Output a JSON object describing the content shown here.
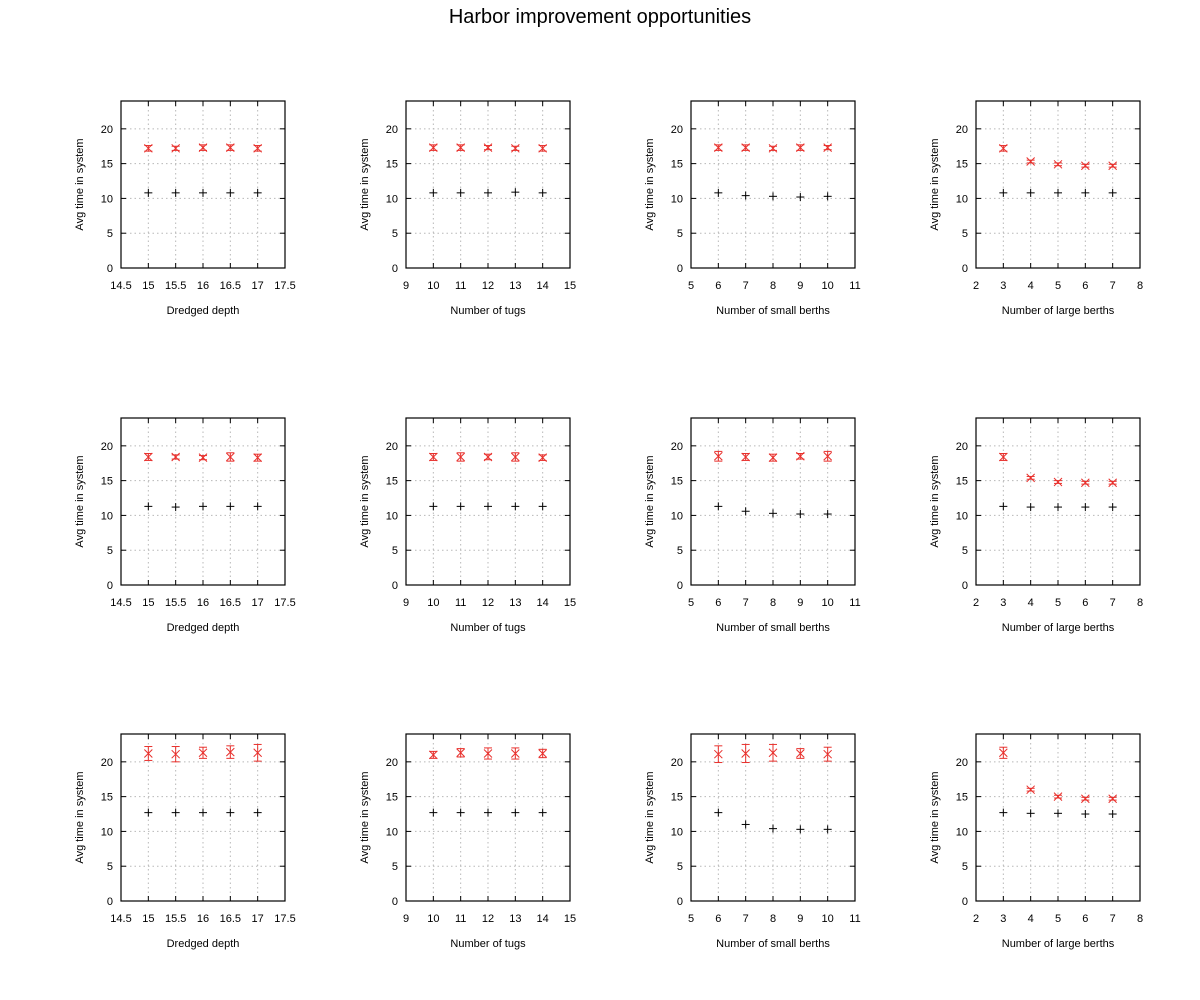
{
  "figure": {
    "title": "Harbor improvement opportunities"
  },
  "colors": {
    "series_plus": "#000000",
    "series_x": "#e8302c",
    "grid": "#b8b8b8"
  },
  "chart_data": [
    {
      "type": "scatter",
      "xlabel": "Dredged depth",
      "ylabel": "Avg time in system",
      "xlim": [
        14.5,
        17.5
      ],
      "xticks": [
        "14.5",
        "15",
        "15.5",
        "16",
        "16.5",
        "17",
        "17.5"
      ],
      "ylim": [
        0,
        24
      ],
      "yticks": [
        "0",
        "5",
        "10",
        "15",
        "20"
      ],
      "grid": true,
      "marker_plus": {
        "x": [
          15,
          15.5,
          16,
          16.5,
          17
        ],
        "y": [
          10.8,
          10.8,
          10.8,
          10.8,
          10.8
        ]
      },
      "marker_x": {
        "x": [
          15,
          15.5,
          16,
          16.5,
          17
        ],
        "y": [
          17.2,
          17.2,
          17.3,
          17.3,
          17.2
        ],
        "err": [
          0.4,
          0.3,
          0.4,
          0.4,
          0.4
        ]
      }
    },
    {
      "type": "scatter",
      "xlabel": "Number of tugs",
      "ylabel": "Avg time in system",
      "xlim": [
        9,
        15
      ],
      "xticks": [
        "9",
        "10",
        "11",
        "12",
        "13",
        "14",
        "15"
      ],
      "ylim": [
        0,
        24
      ],
      "yticks": [
        "0",
        "5",
        "10",
        "15",
        "20"
      ],
      "grid": true,
      "marker_plus": {
        "x": [
          10,
          11,
          12,
          13,
          14
        ],
        "y": [
          10.8,
          10.8,
          10.8,
          10.9,
          10.8
        ]
      },
      "marker_x": {
        "x": [
          10,
          11,
          12,
          13,
          14
        ],
        "y": [
          17.3,
          17.3,
          17.3,
          17.2,
          17.2
        ],
        "err": [
          0.4,
          0.4,
          0.3,
          0.3,
          0.4
        ]
      }
    },
    {
      "type": "scatter",
      "xlabel": "Number of small berths",
      "ylabel": "Avg time in system",
      "xlim": [
        5,
        11
      ],
      "xticks": [
        "5",
        "6",
        "7",
        "8",
        "9",
        "10",
        "11"
      ],
      "ylim": [
        0,
        24
      ],
      "yticks": [
        "0",
        "5",
        "10",
        "15",
        "20"
      ],
      "grid": true,
      "marker_plus": {
        "x": [
          6,
          7,
          8,
          9,
          10
        ],
        "y": [
          10.8,
          10.4,
          10.3,
          10.2,
          10.3
        ]
      },
      "marker_x": {
        "x": [
          6,
          7,
          8,
          9,
          10
        ],
        "y": [
          17.3,
          17.3,
          17.2,
          17.3,
          17.3
        ],
        "err": [
          0.4,
          0.4,
          0.3,
          0.4,
          0.3
        ]
      }
    },
    {
      "type": "scatter",
      "xlabel": "Number of large berths",
      "ylabel": "Avg time in system",
      "xlim": [
        2,
        8
      ],
      "xticks": [
        "2",
        "3",
        "4",
        "5",
        "6",
        "7",
        "8"
      ],
      "ylim": [
        0,
        24
      ],
      "yticks": [
        "0",
        "5",
        "10",
        "15",
        "20"
      ],
      "grid": true,
      "marker_plus": {
        "x": [
          3,
          4,
          5,
          6,
          7
        ],
        "y": [
          10.8,
          10.8,
          10.8,
          10.8,
          10.8
        ]
      },
      "marker_x": {
        "x": [
          3,
          4,
          5,
          6,
          7
        ],
        "y": [
          17.2,
          15.3,
          14.9,
          14.7,
          14.7
        ],
        "err": [
          0.4,
          0.2,
          0.2,
          0.2,
          0.2
        ]
      }
    },
    {
      "type": "scatter",
      "xlabel": "Dredged depth",
      "ylabel": "Avg time in system",
      "xlim": [
        14.5,
        17.5
      ],
      "xticks": [
        "14.5",
        "15",
        "15.5",
        "16",
        "16.5",
        "17",
        "17.5"
      ],
      "ylim": [
        0,
        24
      ],
      "yticks": [
        "0",
        "5",
        "10",
        "15",
        "20"
      ],
      "grid": true,
      "marker_plus": {
        "x": [
          15,
          15.5,
          16,
          16.5,
          17
        ],
        "y": [
          11.3,
          11.2,
          11.3,
          11.3,
          11.3
        ]
      },
      "marker_x": {
        "x": [
          15,
          15.5,
          16,
          16.5,
          17
        ],
        "y": [
          18.4,
          18.4,
          18.3,
          18.4,
          18.3
        ],
        "err": [
          0.5,
          0.3,
          0.3,
          0.6,
          0.5
        ]
      }
    },
    {
      "type": "scatter",
      "xlabel": "Number of tugs",
      "ylabel": "Avg time in system",
      "xlim": [
        9,
        15
      ],
      "xticks": [
        "9",
        "10",
        "11",
        "12",
        "13",
        "14",
        "15"
      ],
      "ylim": [
        0,
        24
      ],
      "yticks": [
        "0",
        "5",
        "10",
        "15",
        "20"
      ],
      "grid": true,
      "marker_plus": {
        "x": [
          10,
          11,
          12,
          13,
          14
        ],
        "y": [
          11.3,
          11.3,
          11.3,
          11.3,
          11.3
        ]
      },
      "marker_x": {
        "x": [
          10,
          11,
          12,
          13,
          14
        ],
        "y": [
          18.4,
          18.4,
          18.4,
          18.4,
          18.3
        ],
        "err": [
          0.5,
          0.6,
          0.4,
          0.6,
          0.4
        ]
      }
    },
    {
      "type": "scatter",
      "xlabel": "Number of small berths",
      "ylabel": "Avg time in system",
      "xlim": [
        5,
        11
      ],
      "xticks": [
        "5",
        "6",
        "7",
        "8",
        "9",
        "10",
        "11"
      ],
      "ylim": [
        0,
        24
      ],
      "yticks": [
        "0",
        "5",
        "10",
        "15",
        "20"
      ],
      "grid": true,
      "marker_plus": {
        "x": [
          6,
          7,
          8,
          9,
          10
        ],
        "y": [
          11.3,
          10.6,
          10.3,
          10.2,
          10.2
        ]
      },
      "marker_x": {
        "x": [
          6,
          7,
          8,
          9,
          10
        ],
        "y": [
          18.5,
          18.4,
          18.3,
          18.5,
          18.5
        ],
        "err": [
          0.7,
          0.5,
          0.5,
          0.4,
          0.7
        ]
      }
    },
    {
      "type": "scatter",
      "xlabel": "Number of large berths",
      "ylabel": "Avg time in system",
      "xlim": [
        2,
        8
      ],
      "xticks": [
        "2",
        "3",
        "4",
        "5",
        "6",
        "7",
        "8"
      ],
      "ylim": [
        0,
        24
      ],
      "yticks": [
        "0",
        "5",
        "10",
        "15",
        "20"
      ],
      "grid": true,
      "marker_plus": {
        "x": [
          3,
          4,
          5,
          6,
          7
        ],
        "y": [
          11.3,
          11.2,
          11.2,
          11.2,
          11.2
        ]
      },
      "marker_x": {
        "x": [
          3,
          4,
          5,
          6,
          7
        ],
        "y": [
          18.4,
          15.4,
          14.8,
          14.7,
          14.7
        ],
        "err": [
          0.5,
          0.2,
          0.2,
          0.2,
          0.2
        ]
      }
    },
    {
      "type": "scatter",
      "xlabel": "Dredged depth",
      "ylabel": "Avg time in system",
      "xlim": [
        14.5,
        17.5
      ],
      "xticks": [
        "14.5",
        "15",
        "15.5",
        "16",
        "16.5",
        "17",
        "17.5"
      ],
      "ylim": [
        0,
        24
      ],
      "yticks": [
        "0",
        "5",
        "10",
        "15",
        "20"
      ],
      "grid": true,
      "marker_plus": {
        "x": [
          15,
          15.5,
          16,
          16.5,
          17
        ],
        "y": [
          12.7,
          12.7,
          12.7,
          12.7,
          12.7
        ]
      },
      "marker_x": {
        "x": [
          15,
          15.5,
          16,
          16.5,
          17
        ],
        "y": [
          21.2,
          21.1,
          21.3,
          21.4,
          21.3
        ],
        "err": [
          1.0,
          1.1,
          0.8,
          0.9,
          1.2
        ]
      }
    },
    {
      "type": "scatter",
      "xlabel": "Number of tugs",
      "ylabel": "Avg time in system",
      "xlim": [
        9,
        15
      ],
      "xticks": [
        "9",
        "10",
        "11",
        "12",
        "13",
        "14",
        "15"
      ],
      "ylim": [
        0,
        24
      ],
      "yticks": [
        "0",
        "5",
        "10",
        "15",
        "20"
      ],
      "grid": true,
      "marker_plus": {
        "x": [
          10,
          11,
          12,
          13,
          14
        ],
        "y": [
          12.7,
          12.7,
          12.7,
          12.7,
          12.7
        ]
      },
      "marker_x": {
        "x": [
          10,
          11,
          12,
          13,
          14
        ],
        "y": [
          21.0,
          21.3,
          21.2,
          21.2,
          21.2
        ],
        "err": [
          0.5,
          0.6,
          0.8,
          0.8,
          0.6
        ]
      }
    },
    {
      "type": "scatter",
      "xlabel": "Number of small berths",
      "ylabel": "Avg time in system",
      "xlim": [
        5,
        11
      ],
      "xticks": [
        "5",
        "6",
        "7",
        "8",
        "9",
        "10",
        "11"
      ],
      "ylim": [
        0,
        24
      ],
      "yticks": [
        "0",
        "5",
        "10",
        "15",
        "20"
      ],
      "grid": true,
      "marker_plus": {
        "x": [
          6,
          7,
          8,
          9,
          10
        ],
        "y": [
          12.7,
          11.0,
          10.4,
          10.3,
          10.3
        ]
      },
      "marker_x": {
        "x": [
          6,
          7,
          8,
          9,
          10
        ],
        "y": [
          21.1,
          21.2,
          21.3,
          21.2,
          21.1
        ],
        "err": [
          1.2,
          1.3,
          1.2,
          0.7,
          1.0
        ]
      }
    },
    {
      "type": "scatter",
      "xlabel": "Number of large berths",
      "ylabel": "Avg time in system",
      "xlim": [
        2,
        8
      ],
      "xticks": [
        "2",
        "3",
        "4",
        "5",
        "6",
        "7",
        "8"
      ],
      "ylim": [
        0,
        24
      ],
      "yticks": [
        "0",
        "5",
        "10",
        "15",
        "20"
      ],
      "grid": true,
      "marker_plus": {
        "x": [
          3,
          4,
          5,
          6,
          7
        ],
        "y": [
          12.7,
          12.6,
          12.6,
          12.5,
          12.5
        ]
      },
      "marker_x": {
        "x": [
          3,
          4,
          5,
          6,
          7
        ],
        "y": [
          21.3,
          16.0,
          15.0,
          14.7,
          14.7
        ],
        "err": [
          0.8,
          0.2,
          0.2,
          0.2,
          0.2
        ]
      }
    }
  ]
}
